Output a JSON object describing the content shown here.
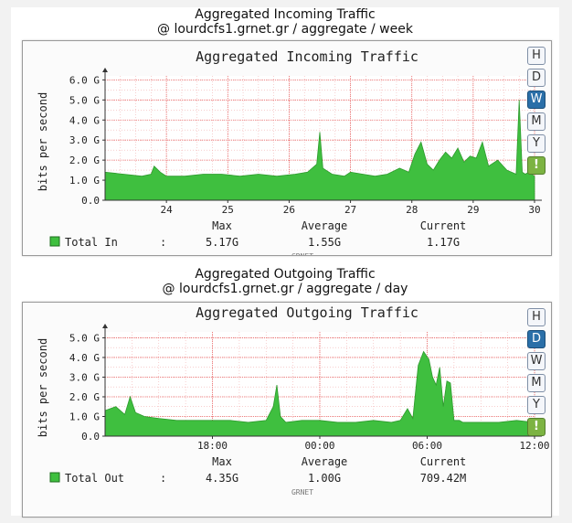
{
  "colors": {
    "fill": "#3fbf3f",
    "stroke": "#2e9a2e",
    "grid": "#f2b0b0",
    "axis": "#333333",
    "active_button": "#2a6fa8",
    "refresh_button": "#7cb342"
  },
  "watermark": "GRNET",
  "buttons": [
    "H",
    "D",
    "W",
    "M",
    "Y",
    "!"
  ],
  "charts": [
    {
      "caption_title": "Aggregated Incoming Traffic",
      "caption_subtitle": "@ lourdcfs1.grnet.gr / aggregate / week",
      "active_button": "W",
      "stats": {
        "headers": [
          "Max",
          "Average",
          "Current"
        ],
        "label": "Total In",
        "sep": ":",
        "values": [
          "5.17G",
          "1.55G",
          "1.17G"
        ]
      }
    },
    {
      "caption_title": "Aggregated Outgoing Traffic",
      "caption_subtitle": "@ lourdcfs1.grnet.gr / aggregate / day",
      "active_button": "D",
      "stats": {
        "headers": [
          "Max",
          "Average",
          "Current"
        ],
        "label": "Total Out",
        "sep": ":",
        "values": [
          "4.35G",
          "1.00G",
          "709.42M"
        ]
      }
    }
  ],
  "chart_data": [
    {
      "type": "area",
      "title": "Aggregated Incoming Traffic",
      "ylabel": "bits per second",
      "ylim": [
        0,
        6.2
      ],
      "yticks": [
        "0.0",
        "1.0 G",
        "2.0 G",
        "3.0 G",
        "4.0 G",
        "5.0 G",
        "6.0 G"
      ],
      "ytick_values": [
        0,
        1,
        2,
        3,
        4,
        5,
        6
      ],
      "xlim": [
        23.0,
        30.0
      ],
      "xticks": [
        "24",
        "25",
        "26",
        "27",
        "28",
        "29",
        "30"
      ],
      "xtick_values": [
        24,
        25,
        26,
        27,
        28,
        29,
        30
      ],
      "grid": true,
      "series": [
        {
          "name": "Total In",
          "x": [
            23.0,
            23.3,
            23.6,
            23.75,
            23.8,
            23.9,
            24.0,
            24.3,
            24.6,
            24.9,
            25.2,
            25.5,
            25.8,
            26.1,
            26.3,
            26.45,
            26.5,
            26.55,
            26.7,
            26.9,
            27.0,
            27.2,
            27.4,
            27.6,
            27.8,
            27.95,
            28.05,
            28.15,
            28.25,
            28.35,
            28.45,
            28.55,
            28.65,
            28.75,
            28.85,
            28.95,
            29.05,
            29.15,
            29.25,
            29.4,
            29.55,
            29.7,
            29.75,
            29.8,
            29.85,
            29.9,
            30.0
          ],
          "y": [
            1.4,
            1.3,
            1.2,
            1.3,
            1.7,
            1.4,
            1.2,
            1.2,
            1.3,
            1.3,
            1.2,
            1.3,
            1.2,
            1.3,
            1.4,
            1.8,
            3.4,
            1.6,
            1.3,
            1.2,
            1.4,
            1.3,
            1.2,
            1.3,
            1.6,
            1.4,
            2.3,
            2.9,
            1.8,
            1.5,
            2.0,
            2.4,
            2.1,
            2.6,
            1.9,
            2.2,
            2.1,
            2.9,
            1.7,
            2.0,
            1.5,
            1.3,
            5.0,
            1.4,
            1.3,
            1.4,
            1.2
          ]
        }
      ]
    },
    {
      "type": "area",
      "title": "Aggregated Outgoing Traffic",
      "ylabel": "bits per second",
      "ylim": [
        0,
        5.3
      ],
      "yticks": [
        "0.0",
        "1.0 G",
        "2.0 G",
        "3.0 G",
        "4.0 G",
        "5.0 G"
      ],
      "ytick_values": [
        0,
        1,
        2,
        3,
        4,
        5
      ],
      "xlim": [
        12,
        36
      ],
      "xticks": [
        "18:00",
        "00:00",
        "06:00",
        "12:00"
      ],
      "xtick_values": [
        18,
        24,
        30,
        36
      ],
      "grid": true,
      "series": [
        {
          "name": "Total Out",
          "x": [
            12,
            12.6,
            13.1,
            13.4,
            13.7,
            14.2,
            15,
            16,
            17,
            18,
            19,
            20,
            21,
            21.4,
            21.6,
            21.8,
            22.1,
            23,
            24,
            25,
            26,
            27,
            28,
            28.5,
            28.9,
            29.2,
            29.5,
            29.8,
            30.1,
            30.3,
            30.5,
            30.7,
            30.9,
            31.1,
            31.3,
            31.5,
            31.8,
            32,
            33,
            34,
            35,
            36
          ],
          "y": [
            1.3,
            1.5,
            1.1,
            2.0,
            1.2,
            1.0,
            0.9,
            0.8,
            0.8,
            0.8,
            0.8,
            0.7,
            0.8,
            1.5,
            2.6,
            1.0,
            0.7,
            0.8,
            0.8,
            0.7,
            0.7,
            0.8,
            0.7,
            0.8,
            1.4,
            0.9,
            3.6,
            4.3,
            3.9,
            3.0,
            2.6,
            3.5,
            1.5,
            2.8,
            2.7,
            0.8,
            0.8,
            0.7,
            0.7,
            0.7,
            0.8,
            0.7
          ]
        }
      ]
    }
  ]
}
